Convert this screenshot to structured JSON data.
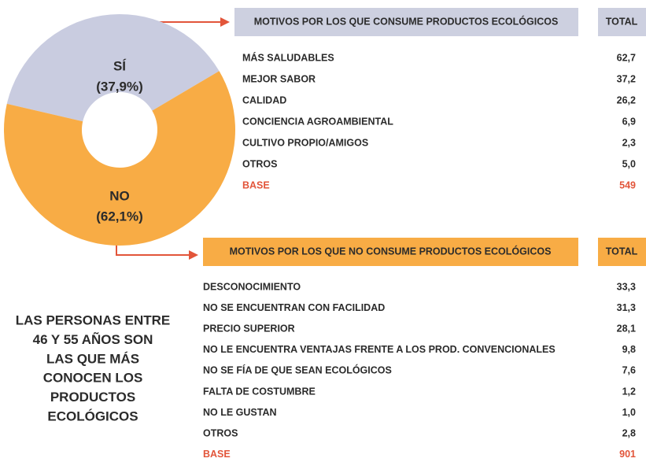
{
  "chart_data": {
    "type": "pie",
    "donut": true,
    "categories": [
      "SÍ",
      "NO"
    ],
    "values": [
      37.9,
      62.1
    ],
    "value_labels": [
      "(37,9%)",
      "(62,1%)"
    ],
    "colors": [
      "#c9cce0",
      "#f8ac45"
    ]
  },
  "tables": [
    {
      "header": "MOTIVOS POR LOS QUE CONSUME PRODUCTOS ECOLÓGICOS",
      "total_header": "TOTAL",
      "rows": [
        [
          "MÁS SALUDABLES",
          "62,7"
        ],
        [
          "MEJOR SABOR",
          "37,2"
        ],
        [
          "CALIDAD",
          "26,2"
        ],
        [
          "CONCIENCIA AGROAMBIENTAL",
          "6,9"
        ],
        [
          "CULTIVO PROPIO/AMIGOS",
          "2,3"
        ],
        [
          "OTROS",
          "5,0"
        ],
        [
          "BASE",
          "549"
        ]
      ]
    },
    {
      "header": "MOTIVOS POR LOS QUE NO CONSUME PRODUCTOS ECOLÓGICOS",
      "total_header": "TOTAL",
      "rows": [
        [
          "DESCONOCIMIENTO",
          "33,3"
        ],
        [
          "NO SE ENCUENTRAN CON FACILIDAD",
          "31,3"
        ],
        [
          "PRECIO SUPERIOR",
          "28,1"
        ],
        [
          "NO LE ENCUENTRA VENTAJAS FRENTE A LOS PROD. CONVENCIONALES",
          "9,8"
        ],
        [
          "NO SE FÍA DE QUE SEAN ECOLÓGICOS",
          "7,6"
        ],
        [
          "FALTA DE COSTUMBRE",
          "1,2"
        ],
        [
          "NO LE GUSTAN",
          "1,0"
        ],
        [
          "OTROS",
          "2,8"
        ],
        [
          "BASE",
          "901"
        ]
      ]
    }
  ],
  "note": [
    "LAS PERSONAS ENTRE",
    "46 Y 55 AÑOS SON",
    "LAS QUE MÁS",
    "CONOCEN LOS",
    "PRODUCTOS",
    "ECOLÓGICOS"
  ]
}
